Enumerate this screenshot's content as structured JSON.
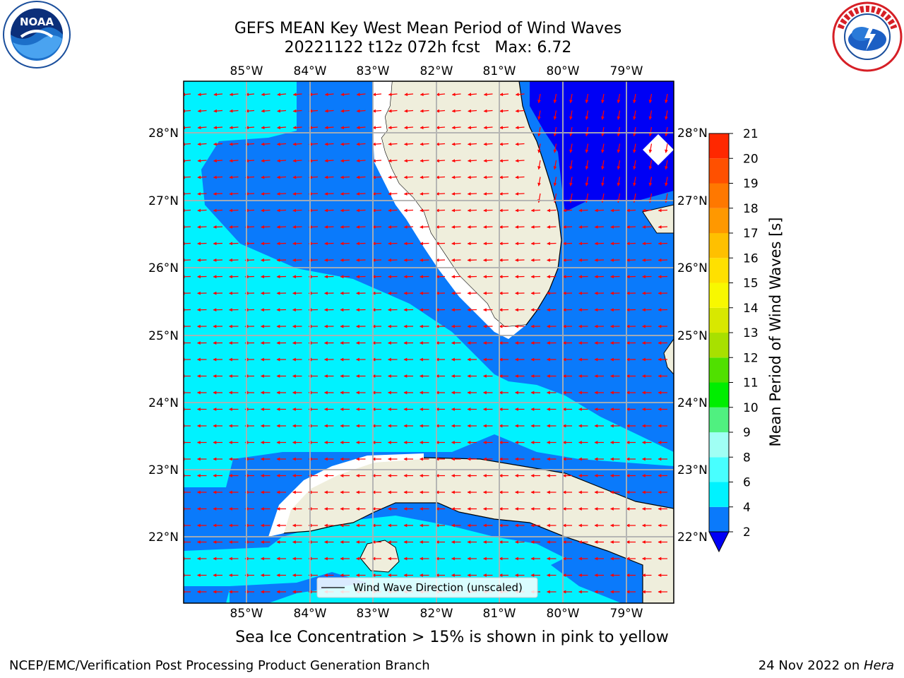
{
  "header": {
    "title_line1": "GEFS MEAN Key West Mean Period of Wind Waves",
    "title_line2": "20221122 t12z 072h fcst   Max: 6.72"
  },
  "logos": {
    "left": "noaa-logo",
    "right": "nws-logo",
    "noaa_text": "NOAA"
  },
  "map": {
    "lon_labels": [
      "85°W",
      "84°W",
      "83°W",
      "82°W",
      "81°W",
      "80°W",
      "79°W"
    ],
    "lat_labels": [
      "28°N",
      "27°N",
      "26°N",
      "25°N",
      "24°N",
      "23°N",
      "22°N"
    ],
    "legend_label": "Wind Wave Direction (unscaled)",
    "colors": {
      "land": "#efeedc",
      "band_2_4": "#0a7afb",
      "band_4_6": "#00f2ff",
      "below_2": "#0000f5",
      "arrow": "#ff0000",
      "grid": "#b0b0b0"
    }
  },
  "colorbar": {
    "ticks": [
      "2",
      "4",
      "6",
      "8",
      "9",
      "10",
      "11",
      "12",
      "13",
      "14",
      "15",
      "16",
      "17",
      "18",
      "19",
      "20",
      "21"
    ],
    "colors": [
      "#0a7afb",
      "#00f2ff",
      "#48ffff",
      "#a0fff4",
      "#50f080",
      "#00ee00",
      "#50e000",
      "#a8e000",
      "#d8e800",
      "#f8f800",
      "#ffe000",
      "#ffc000",
      "#ff9800",
      "#ff7800",
      "#ff5000",
      "#ff2800",
      "#ff0000"
    ],
    "label": "Mean Period of Wind Waves [s]"
  },
  "subtitle": "Sea Ice Concentration > 15% is shown in pink to yellow",
  "footer": {
    "left": "NCEP/EMC/Verification Post Processing Product Generation Branch",
    "right_date": "24 Nov 2022 on ",
    "right_host": "Hera"
  }
}
